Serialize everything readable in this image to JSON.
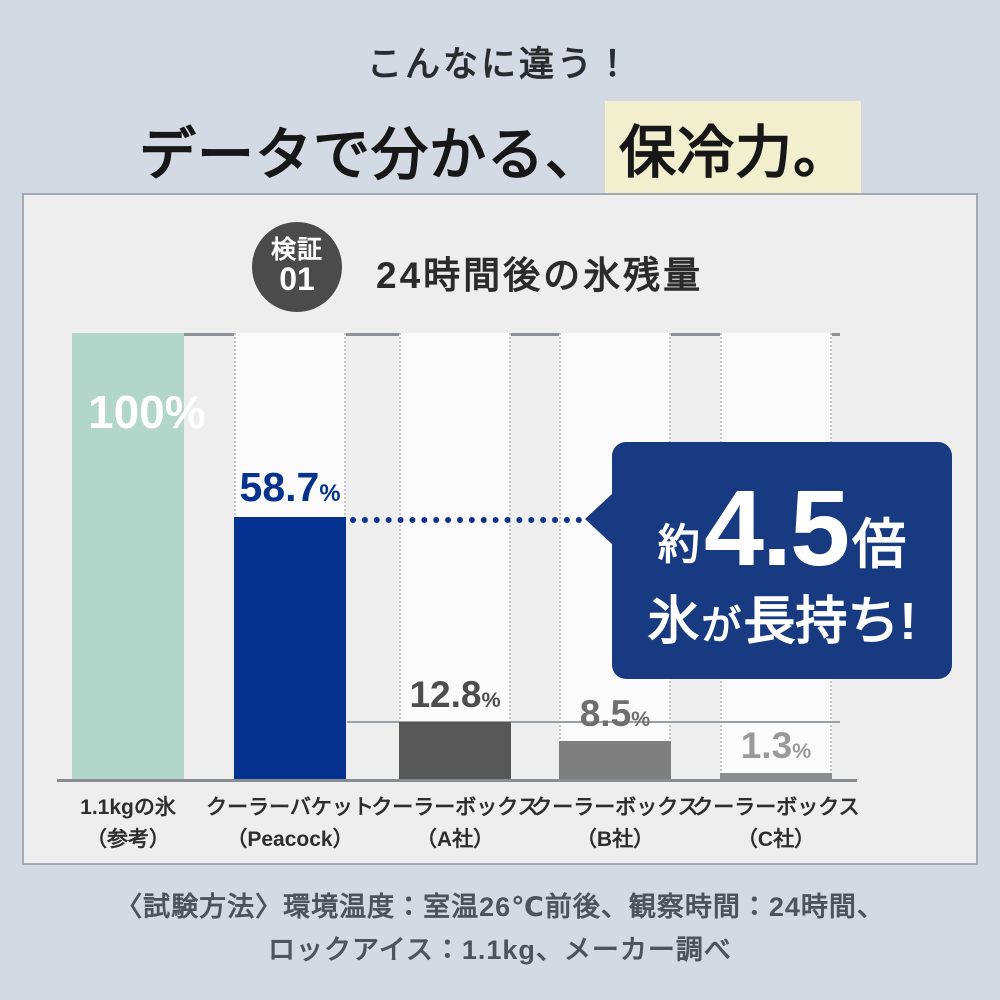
{
  "page": {
    "subtitle": "こんなに違う！",
    "title_plain": "データで分かる、",
    "title_highlight": "保冷力。"
  },
  "panel": {
    "badge_line1": "検証",
    "badge_line2": "01",
    "title": "24時間後の氷残量"
  },
  "callout": {
    "line1": [
      {
        "text": "約",
        "size": "small"
      },
      {
        "text": "4.5",
        "size": "huge"
      },
      {
        "text": "倍",
        "size": "medium"
      }
    ],
    "line2": [
      {
        "text": "氷",
        "size": "large"
      },
      {
        "text": "が",
        "size": "small2"
      },
      {
        "text": "長持ち!",
        "size": "large"
      }
    ],
    "background": "#173a80"
  },
  "footer": {
    "line1": "〈試験方法〉環境温度：室温26℃前後、観察時間：24時間、",
    "line2": "ロックアイス：1.1kg、メーカー調べ"
  },
  "colors": {
    "page_background": "#d4dae3",
    "panel_background": "#eeeeee",
    "title_highlight_background": "#f1efce",
    "brand_blue": "#05328e",
    "callout_blue": "#173a80",
    "mint": "#b2d6ca",
    "axis_line": "#8d9196"
  },
  "chart_data": {
    "type": "bar",
    "title": "24時間後の氷残量",
    "unit": "%",
    "ylim": [
      0,
      100
    ],
    "grid": false,
    "reference_line_value": 12.8,
    "categories": [
      "1.1kgの氷（参考）",
      "クーラーバケット（Peacock）",
      "クーラーボックス（A社）",
      "クーラーボックス（B社）",
      "クーラーボックス（C社）"
    ],
    "values": [
      100,
      58.7,
      12.8,
      8.5,
      1.3
    ],
    "percent_sign": "%",
    "bars": [
      {
        "label_line1": "1.1kgの氷",
        "label_line2": "（参考）",
        "value": 100,
        "display": "100",
        "color": "#b2d6ca",
        "value_color": "#ffffff",
        "value_inside": true,
        "value_font": 46
      },
      {
        "label_line1": "クーラーバケット",
        "label_line2": "（Peacock）",
        "value": 58.7,
        "display": "58.7",
        "color": "#05328e",
        "value_color": "#05328e",
        "value_inside": false,
        "value_font": 41
      },
      {
        "label_line1": "クーラーボックス",
        "label_line2": "（A社）",
        "value": 12.8,
        "display": "12.8",
        "color": "#575757",
        "value_color": "#4d4d4d",
        "value_inside": false,
        "value_font": 37
      },
      {
        "label_line1": "クーラーボックス",
        "label_line2": "（B社）",
        "value": 8.5,
        "display": "8.5",
        "color": "#7f7f7f",
        "value_color": "#6e6e6e",
        "value_inside": false,
        "value_font": 37
      },
      {
        "label_line1": "クーラーボックス",
        "label_line2": "（C社）",
        "value": 1.3,
        "display": "1.3",
        "color": "#8d8d8d",
        "value_color": "#9a9a9a",
        "value_inside": false,
        "value_font": 37
      }
    ],
    "annotation": "約4.5倍 氷が長持ち!"
  }
}
